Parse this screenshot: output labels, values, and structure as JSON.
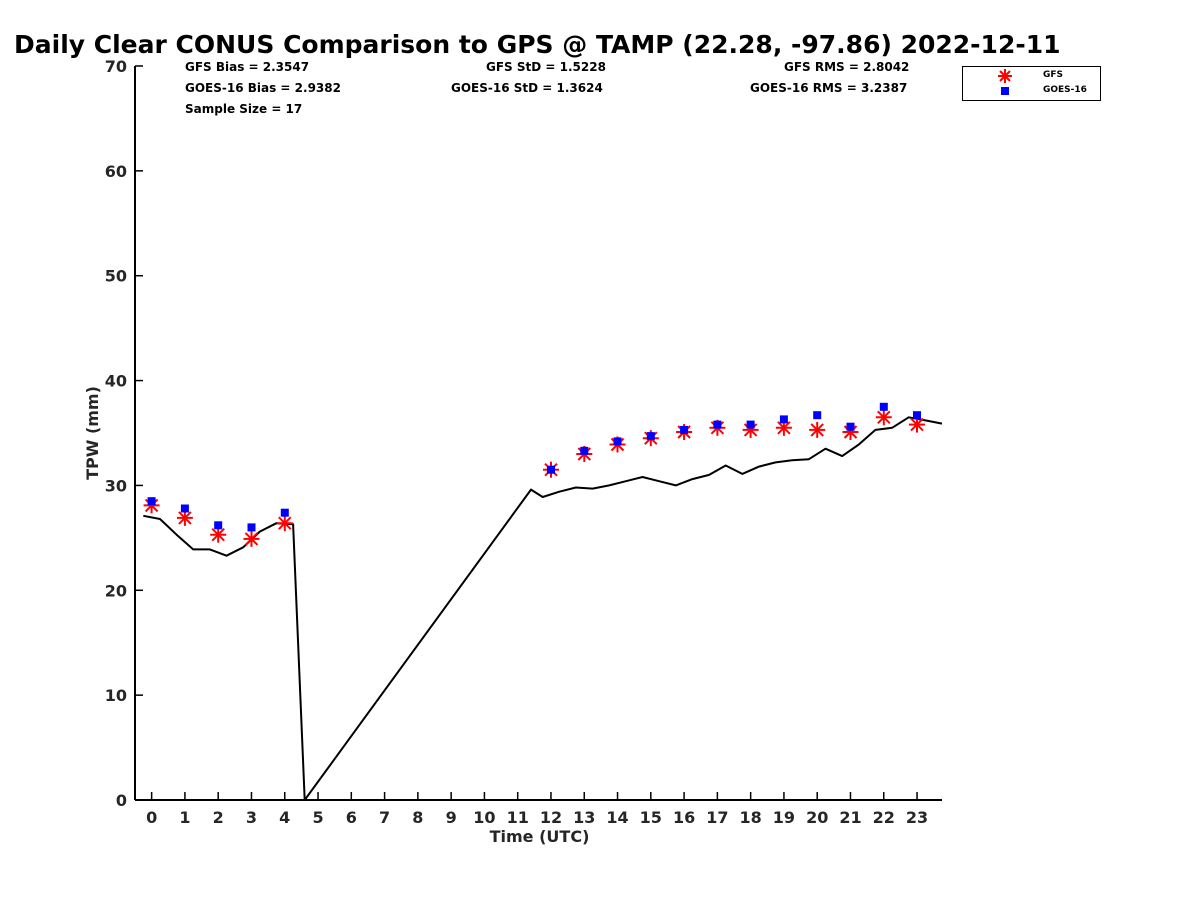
{
  "title": "Daily Clear CONUS Comparison to GPS @ TAMP (22.28, -97.86) 2022-12-11",
  "stats": {
    "gfs_bias": "GFS Bias = 2.3547",
    "goes_bias": "GOES-16 Bias = 2.9382",
    "sample_size": "Sample Size = 17",
    "gfs_std": "GFS StD = 1.5228",
    "goes_std": "GOES-16 StD = 1.3624",
    "gfs_rms": "GFS RMS = 2.8042",
    "goes_rms": "GOES-16 RMS = 3.2387"
  },
  "legend": {
    "gfs": "GFS",
    "goes": "GOES-16"
  },
  "colors": {
    "gfs": "#ff0000",
    "goes": "#0000ff",
    "gps": "#000000"
  },
  "chart_data": {
    "type": "line",
    "title": "Daily Clear CONUS Comparison to GPS @ TAMP (22.28, -97.86) 2022-12-11",
    "xlabel": "Time (UTC)",
    "ylabel": "TPW (mm)",
    "xlim": [
      -0.5,
      23.75
    ],
    "ylim": [
      0,
      70
    ],
    "xticks": [
      0,
      1,
      2,
      3,
      4,
      5,
      6,
      7,
      8,
      9,
      10,
      11,
      12,
      13,
      14,
      15,
      16,
      17,
      18,
      19,
      20,
      21,
      22,
      23
    ],
    "yticks": [
      0,
      10,
      20,
      30,
      40,
      50,
      60,
      70
    ],
    "series": [
      {
        "name": "",
        "kind": "line",
        "x": [
          -0.25,
          0.25,
          0.75,
          1.25,
          1.75,
          2.25,
          2.75,
          3.25,
          3.75,
          4.25,
          4.6,
          11.4,
          11.75,
          12.25,
          12.75,
          13.25,
          13.75,
          14.25,
          14.75,
          15.25,
          15.75,
          16.25,
          16.75,
          17.25,
          17.75,
          18.25,
          18.75,
          19.25,
          19.75,
          20.25,
          20.75,
          21.25,
          21.75,
          22.25,
          22.75,
          23.25,
          23.75
        ],
        "y": [
          27.1,
          26.8,
          25.3,
          23.9,
          23.9,
          23.3,
          24.1,
          25.6,
          26.4,
          26.3,
          0,
          29.6,
          28.9,
          29.4,
          29.8,
          29.7,
          30.0,
          30.4,
          30.8,
          30.4,
          30.0,
          30.6,
          31.0,
          31.9,
          31.1,
          31.8,
          32.2,
          32.4,
          32.5,
          33.5,
          32.8,
          33.9,
          35.3,
          35.5,
          36.5,
          36.2,
          35.9
        ]
      },
      {
        "name": "GFS",
        "kind": "scatter",
        "x": [
          0,
          1,
          2,
          3,
          4,
          12,
          13,
          14,
          15,
          16,
          17,
          18,
          19,
          20,
          21,
          22,
          23
        ],
        "y": [
          28.1,
          26.9,
          25.3,
          24.9,
          26.4,
          31.5,
          33.0,
          33.9,
          34.5,
          35.1,
          35.5,
          35.3,
          35.5,
          35.3,
          35.1,
          36.5,
          35.8
        ]
      },
      {
        "name": "GOES-16",
        "kind": "scatter",
        "x": [
          0,
          1,
          2,
          3,
          4,
          12,
          13,
          14,
          15,
          16,
          17,
          18,
          19,
          20,
          21,
          22,
          23
        ],
        "y": [
          28.5,
          27.8,
          26.2,
          26.0,
          27.4,
          31.5,
          33.3,
          34.2,
          34.7,
          35.3,
          35.8,
          35.8,
          36.3,
          36.7,
          35.6,
          37.5,
          36.7
        ]
      }
    ],
    "grid": false,
    "legend_position": "top-right"
  }
}
